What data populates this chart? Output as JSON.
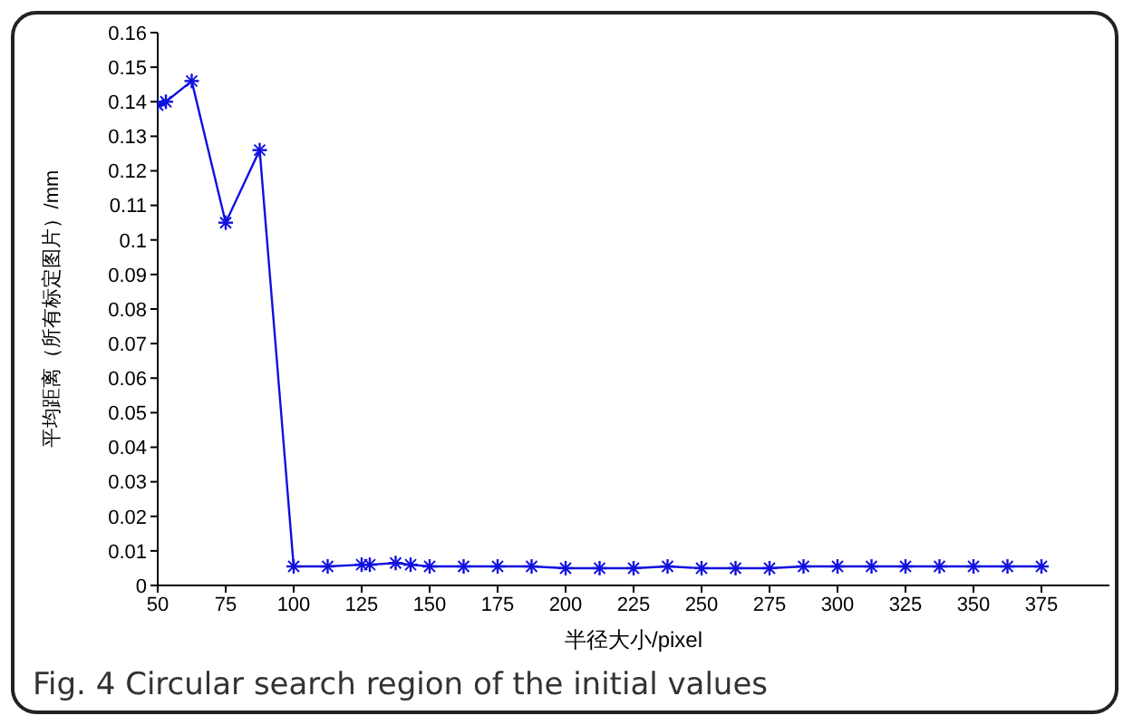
{
  "chart_data": {
    "type": "line",
    "x": [
      50,
      53,
      62.5,
      75,
      87.5,
      100,
      112.5,
      125,
      128,
      137.5,
      143,
      150,
      162.5,
      175,
      187.5,
      200,
      212.5,
      225,
      237.5,
      250,
      262.5,
      275,
      287.5,
      300,
      312.5,
      325,
      337.5,
      350,
      362.5,
      375
    ],
    "series": [
      {
        "color": "#1010e0",
        "values": [
          0.139,
          0.14,
          0.146,
          0.105,
          0.126,
          0.0055,
          0.0055,
          0.006,
          0.006,
          0.0065,
          0.006,
          0.0055,
          0.0055,
          0.0055,
          0.0055,
          0.005,
          0.005,
          0.005,
          0.0055,
          0.005,
          0.005,
          0.005,
          0.0055,
          0.0055,
          0.0055,
          0.0055,
          0.0055,
          0.0055,
          0.0055,
          0.0055
        ]
      }
    ],
    "xlabel": "半径大小/pixel",
    "ylabel": "平均距离（所有标定图片）/mm",
    "xlim": [
      50,
      400
    ],
    "xticks": [
      50,
      75,
      100,
      125,
      150,
      175,
      200,
      225,
      250,
      275,
      300,
      325,
      350,
      375
    ],
    "ylim": [
      0,
      0.16
    ],
    "yticks": [
      0,
      0.01,
      0.02,
      0.03,
      0.04,
      0.05,
      0.06,
      0.07,
      0.08,
      0.09,
      0.1,
      0.11,
      0.12,
      0.13,
      0.14,
      0.15,
      0.16
    ],
    "marker": "cross",
    "line_style": "solid",
    "grid": false,
    "legend": false,
    "annotations": [
      "Fig. 4 Circular search region of the initial values"
    ]
  }
}
